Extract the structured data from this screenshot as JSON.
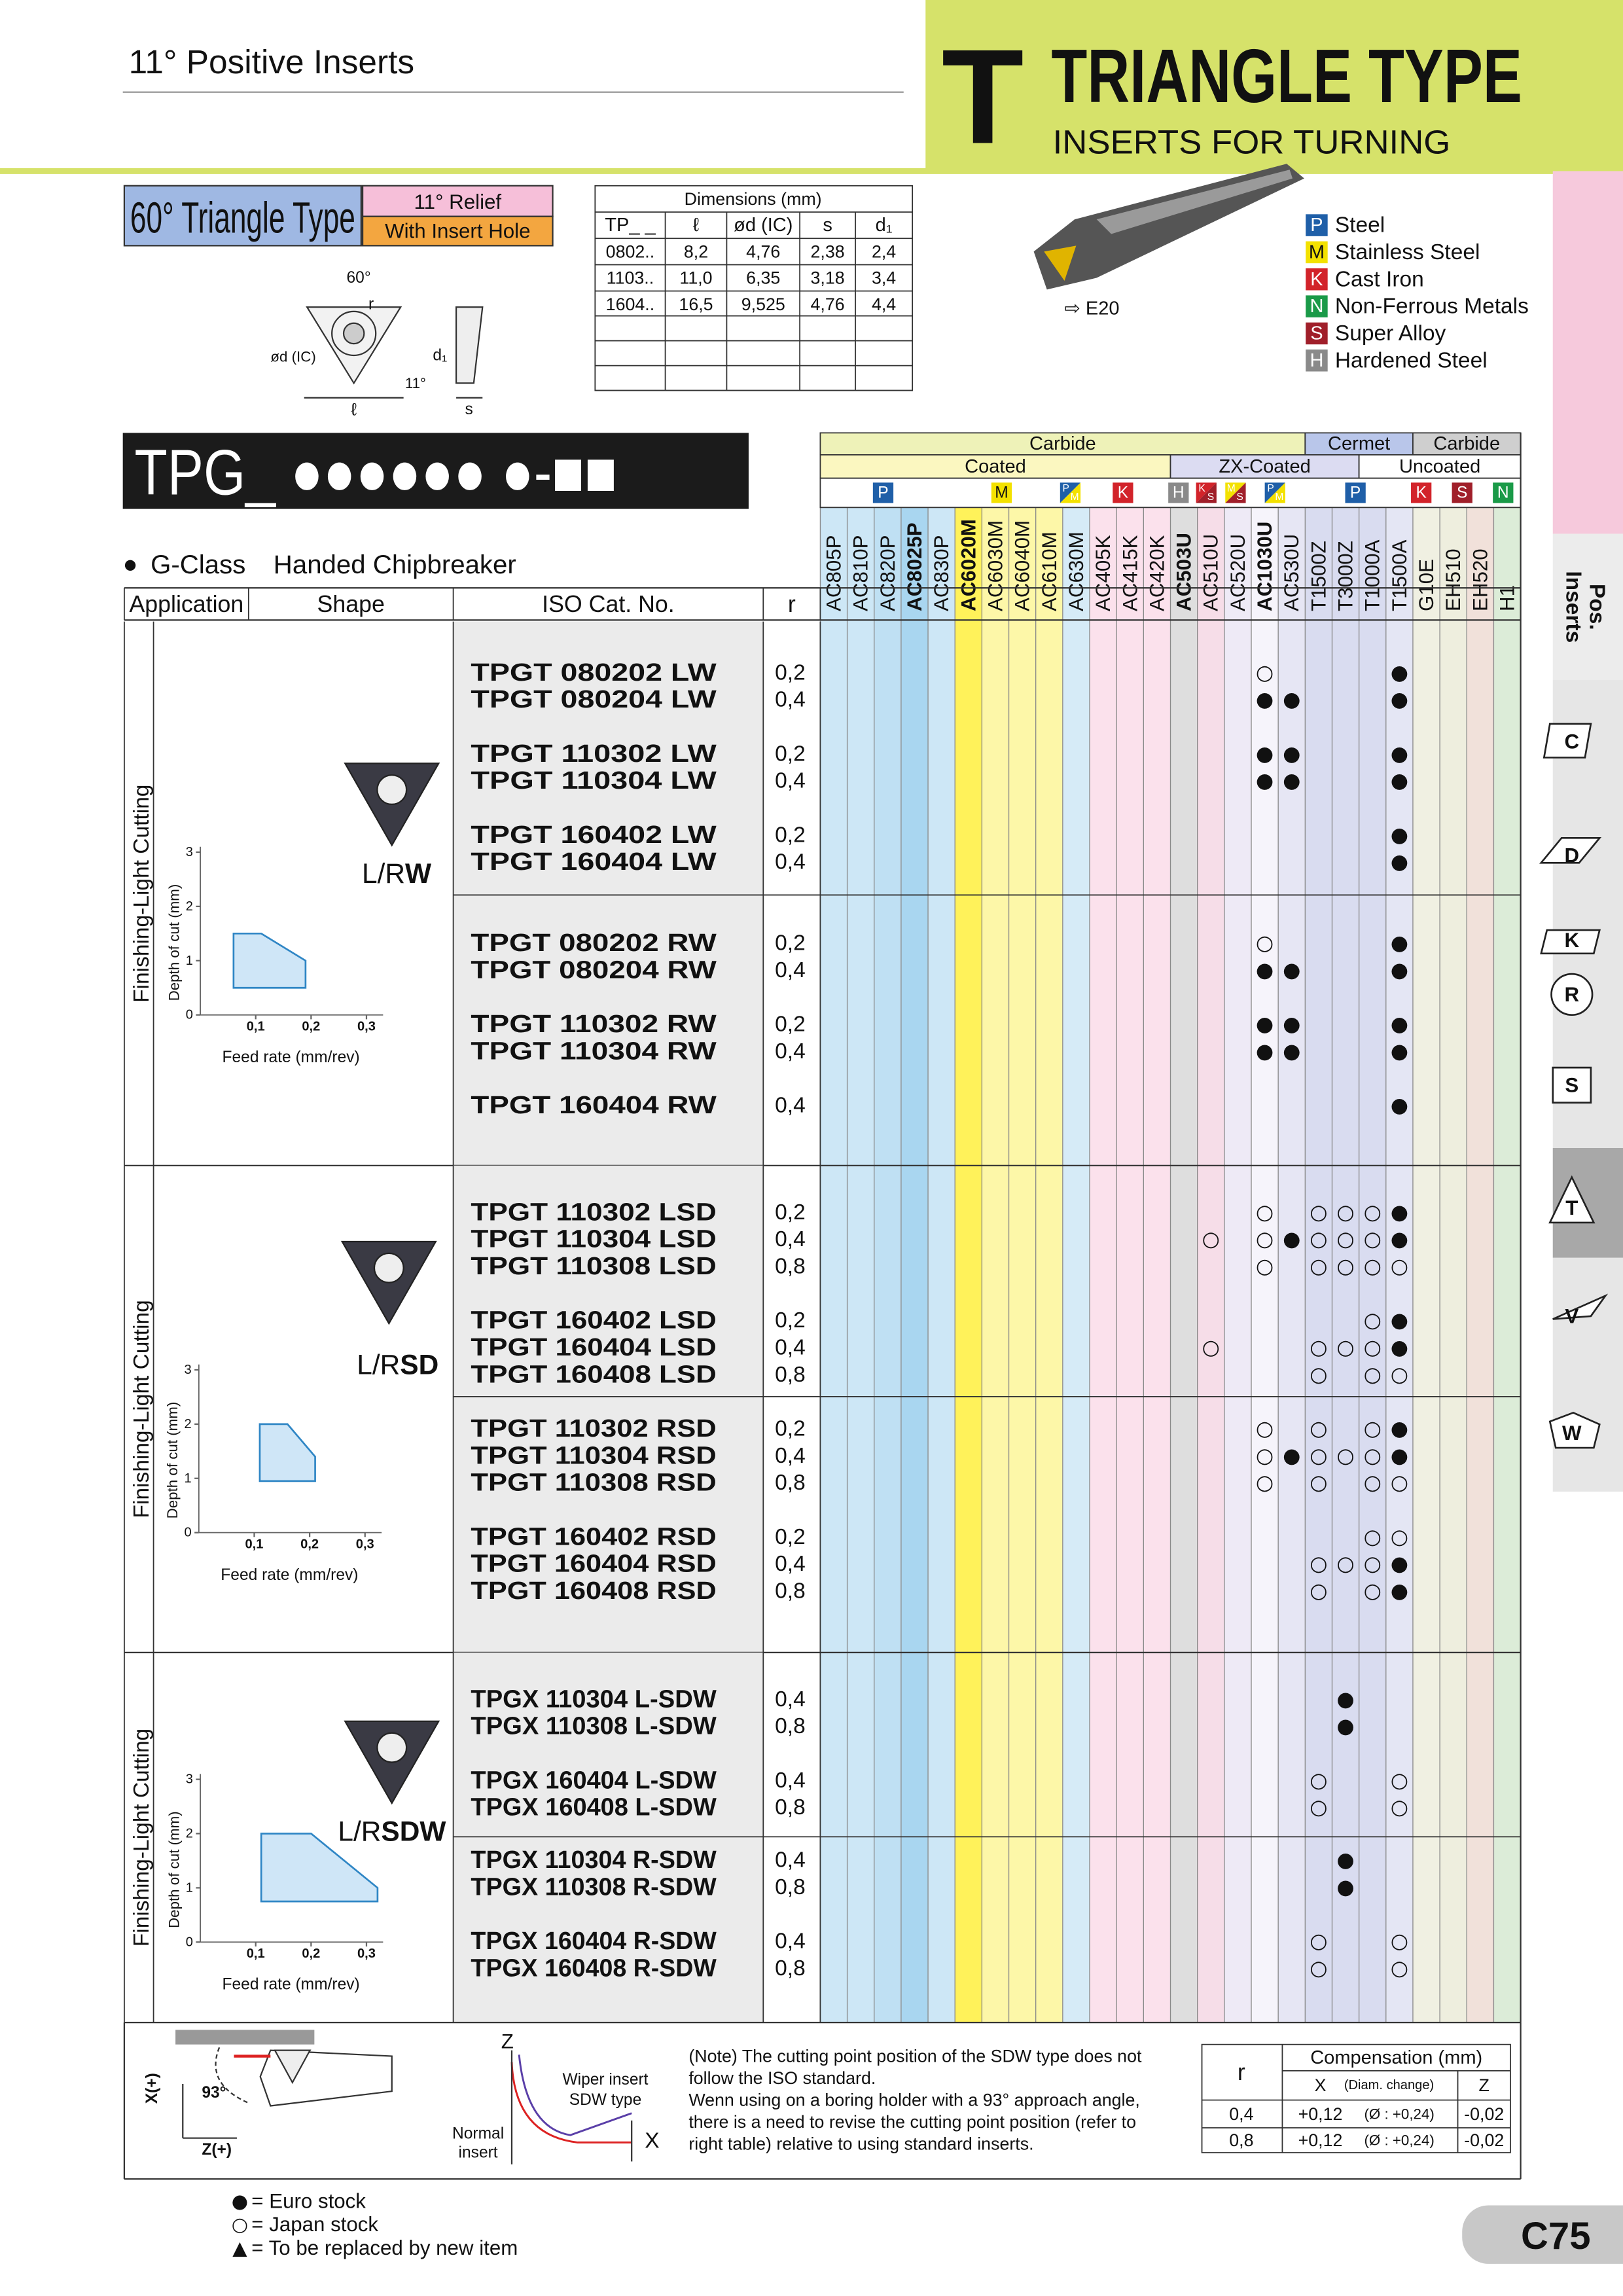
{
  "header": {
    "section": "11° Positive Inserts",
    "letter": "T",
    "title": "TRIANGLE TYPE",
    "subtitle": "INSERTS FOR TURNING"
  },
  "type_box": {
    "name": "60° Triangle Type",
    "relief": "11° Relief",
    "hole": "With Insert Hole"
  },
  "insert_drawing": {
    "angle": "60°",
    "radius": "r",
    "ic": "ød (IC)",
    "length": "ℓ",
    "hole": "d₁",
    "relief": "11°",
    "thickness": "s"
  },
  "dimensions": {
    "title": "Dimensions (mm)",
    "headers": [
      "TP_ _",
      "ℓ",
      "ød (IC)",
      "s",
      "d₁"
    ],
    "rows": [
      [
        "0802..",
        "8,2",
        "4,76",
        "2,38",
        "2,4"
      ],
      [
        "1103..",
        "11,0",
        "6,35",
        "3,18",
        "3,4"
      ],
      [
        "1604..",
        "16,5",
        "9,525",
        "4,76",
        "4,4"
      ]
    ]
  },
  "holder": "⇨ E20",
  "materials": [
    {
      "code": "P",
      "name": "Steel",
      "color": "#1f5fa8"
    },
    {
      "code": "M",
      "name": "Stainless Steel",
      "color": "#f3e100"
    },
    {
      "code": "K",
      "name": "Cast Iron",
      "color": "#d2232a"
    },
    {
      "code": "N",
      "name": "Non-Ferrous Metals",
      "color": "#1a9a48"
    },
    {
      "code": "S",
      "name": "Super Alloy",
      "color": "#a01f2a"
    },
    {
      "code": "H",
      "name": "Hardened Steel",
      "color": "#8a8a8a"
    }
  ],
  "code": "TPG_ ●●●●●● ●-■■",
  "chipbreaker": {
    "bullet": "●",
    "class": "G-Class",
    "name": "Handed Chipbreaker"
  },
  "table": {
    "headers": [
      "Application",
      "Shape",
      "ISO Cat. No.",
      "r"
    ],
    "grade_groups": [
      {
        "name": "Carbide",
        "color": "#eef2b8"
      },
      {
        "name": "Cermet",
        "color": "#b9c6ea"
      },
      {
        "name": "Carbide",
        "color": "#cfcfcf"
      }
    ],
    "coating_groups": [
      {
        "name": "Coated",
        "color": "#fbf7c0"
      },
      {
        "name": "ZX-Coated",
        "color": "#dcdcf2"
      },
      {
        "name": "Uncoated",
        "color": "#ffffff"
      }
    ],
    "material_icons": [
      [
        "P"
      ],
      [
        "M"
      ],
      [
        "P",
        "M"
      ],
      [
        "K"
      ],
      [
        "H"
      ],
      [
        "K",
        "S"
      ],
      [
        "M",
        "S"
      ],
      [
        "P",
        "M"
      ],
      [
        "P"
      ],
      [
        "K"
      ],
      [
        "S"
      ],
      [
        "N"
      ]
    ],
    "grades": [
      {
        "name": "AC805P",
        "color": "#cde7f6",
        "bold": false
      },
      {
        "name": "AC810P",
        "color": "#cde7f6",
        "bold": false
      },
      {
        "name": "AC820P",
        "color": "#bfe0f3",
        "bold": false
      },
      {
        "name": "AC8025P",
        "color": "#a9d6f0",
        "bold": true
      },
      {
        "name": "AC830P",
        "color": "#cde7f6",
        "bold": false
      },
      {
        "name": "AC6020M",
        "color": "#fff25a",
        "bold": true
      },
      {
        "name": "AC6030M",
        "color": "#fdf7a8",
        "bold": false
      },
      {
        "name": "AC6040M",
        "color": "#fdf7a8",
        "bold": false
      },
      {
        "name": "AC610M",
        "color": "#fdf7a8",
        "bold": false
      },
      {
        "name": "AC630M",
        "color": "#d6ebf7",
        "bold": false
      },
      {
        "name": "AC405K",
        "color": "#fbe1ec",
        "bold": false
      },
      {
        "name": "AC415K",
        "color": "#fbe1ec",
        "bold": false
      },
      {
        "name": "AC420K",
        "color": "#fbe1ec",
        "bold": false
      },
      {
        "name": "AC503U",
        "color": "#dedede",
        "bold": true
      },
      {
        "name": "AC510U",
        "color": "#f6dde8",
        "bold": false
      },
      {
        "name": "AC520U",
        "color": "#eeeaf6",
        "bold": false
      },
      {
        "name": "AC1030U",
        "color": "#f6f4fb",
        "bold": true
      },
      {
        "name": "AC530U",
        "color": "#e6e6f4",
        "bold": false
      },
      {
        "name": "T1500Z",
        "color": "#d9dcf0",
        "bold": false
      },
      {
        "name": "T3000Z",
        "color": "#d9dcf0",
        "bold": false
      },
      {
        "name": "T1000A",
        "color": "#d9dcf0",
        "bold": false
      },
      {
        "name": "T1500A",
        "color": "#e4e6f4",
        "bold": false
      },
      {
        "name": "G10E",
        "color": "#f0f0e2",
        "bold": false
      },
      {
        "name": "EH510",
        "color": "#eeeede",
        "bold": false
      },
      {
        "name": "EH520",
        "color": "#f1e1da",
        "bold": false
      },
      {
        "name": "H1",
        "color": "#dcecd8",
        "bold": false
      }
    ],
    "sections": [
      {
        "application": "Finishing-Light Cutting",
        "shape_prefix": "L/R",
        "shape_suffix": "W",
        "chart": {
          "x_label": "Feed rate (mm/rev)",
          "y_label": "Depth of cut (mm)",
          "xlim": [
            0,
            0.33
          ],
          "ylim": [
            0,
            3.1
          ],
          "xticks": [
            {
              "value": 0.1,
              "label": "0,1"
            },
            {
              "value": 0.2,
              "label": "0,2"
            },
            {
              "value": 0.3,
              "label": "0,3"
            }
          ],
          "yticks": [
            0,
            1,
            2,
            3
          ],
          "region": [
            [
              0.06,
              1.5
            ],
            [
              0.11,
              1.5
            ],
            [
              0.19,
              1.0
            ],
            [
              0.19,
              0.5
            ],
            [
              0.06,
              0.5
            ]
          ]
        },
        "parts": [
          {
            "groups": [
              [
                {
                  "cat": "TPGT 080202 LW",
                  "r": "0,2",
                  "stock": {
                    "AC1030U": "○",
                    "T1500A": "●"
                  }
                },
                {
                  "cat": "TPGT 080204 LW",
                  "r": "0,4",
                  "stock": {
                    "AC1030U": "●",
                    "AC530U": "●",
                    "T1500A": "●"
                  }
                }
              ],
              [
                {
                  "cat": "TPGT 110302 LW",
                  "r": "0,2",
                  "stock": {
                    "AC1030U": "●",
                    "AC530U": "●",
                    "T1500A": "●"
                  }
                },
                {
                  "cat": "TPGT 110304 LW",
                  "r": "0,4",
                  "stock": {
                    "AC1030U": "●",
                    "AC530U": "●",
                    "T1500A": "●"
                  }
                }
              ],
              [
                {
                  "cat": "TPGT 160402 LW",
                  "r": "0,2",
                  "stock": {
                    "T1500A": "●"
                  }
                },
                {
                  "cat": "TPGT 160404 LW",
                  "r": "0,4",
                  "stock": {
                    "T1500A": "●"
                  }
                }
              ]
            ]
          },
          {
            "groups": [
              [
                {
                  "cat": "TPGT 080202 RW",
                  "r": "0,2",
                  "stock": {
                    "AC1030U": "○",
                    "T1500A": "●"
                  }
                },
                {
                  "cat": "TPGT 080204 RW",
                  "r": "0,4",
                  "stock": {
                    "AC1030U": "●",
                    "AC530U": "●",
                    "T1500A": "●"
                  }
                }
              ],
              [
                {
                  "cat": "TPGT 110302 RW",
                  "r": "0,2",
                  "stock": {
                    "AC1030U": "●",
                    "AC530U": "●",
                    "T1500A": "●"
                  }
                },
                {
                  "cat": "TPGT 110304 RW",
                  "r": "0,4",
                  "stock": {
                    "AC1030U": "●",
                    "AC530U": "●",
                    "T1500A": "●"
                  }
                }
              ],
              [
                {
                  "cat": "TPGT 160404 RW",
                  "r": "0,4",
                  "stock": {
                    "T1500A": "●"
                  }
                }
              ]
            ]
          }
        ]
      },
      {
        "application": "Finishing-Light Cutting",
        "shape_prefix": "L/R",
        "shape_suffix": "SD",
        "chart": {
          "x_label": "Feed rate (mm/rev)",
          "y_label": "Depth of cut (mm)",
          "xlim": [
            0,
            0.33
          ],
          "ylim": [
            0,
            3.1
          ],
          "xticks": [
            {
              "value": 0.1,
              "label": "0,1"
            },
            {
              "value": 0.2,
              "label": "0,2"
            },
            {
              "value": 0.3,
              "label": "0,3"
            }
          ],
          "yticks": [
            0,
            1,
            2,
            3
          ],
          "region": [
            [
              0.11,
              2.0
            ],
            [
              0.16,
              2.0
            ],
            [
              0.21,
              1.4
            ],
            [
              0.21,
              0.95
            ],
            [
              0.11,
              0.95
            ]
          ]
        },
        "parts": [
          {
            "groups": [
              [
                {
                  "cat": "TPGT 110302 LSD",
                  "r": "0,2",
                  "stock": {
                    "AC1030U": "○",
                    "T1500Z": "○",
                    "T3000Z": "○",
                    "T1000A": "○",
                    "T1500A": "●"
                  }
                },
                {
                  "cat": "TPGT 110304 LSD",
                  "r": "0,4",
                  "stock": {
                    "AC510U": "○",
                    "AC1030U": "○",
                    "AC530U": "●",
                    "T1500Z": "○",
                    "T3000Z": "○",
                    "T1000A": "○",
                    "T1500A": "●"
                  }
                },
                {
                  "cat": "TPGT 110308 LSD",
                  "r": "0,8",
                  "stock": {
                    "AC1030U": "○",
                    "T1500Z": "○",
                    "T3000Z": "○",
                    "T1000A": "○",
                    "T1500A": "○"
                  }
                }
              ],
              [
                {
                  "cat": "TPGT 160402 LSD",
                  "r": "0,2",
                  "stock": {
                    "T1000A": "○",
                    "T1500A": "●"
                  }
                },
                {
                  "cat": "TPGT 160404 LSD",
                  "r": "0,4",
                  "stock": {
                    "AC510U": "○",
                    "T1500Z": "○",
                    "T3000Z": "○",
                    "T1000A": "○",
                    "T1500A": "●"
                  }
                },
                {
                  "cat": "TPGT 160408 LSD",
                  "r": "0,8",
                  "stock": {
                    "T1500Z": "○",
                    "T1000A": "○",
                    "T1500A": "○"
                  }
                }
              ]
            ]
          },
          {
            "groups": [
              [
                {
                  "cat": "TPGT 110302 RSD",
                  "r": "0,2",
                  "stock": {
                    "AC1030U": "○",
                    "T1500Z": "○",
                    "T1000A": "○",
                    "T1500A": "●"
                  }
                },
                {
                  "cat": "TPGT 110304 RSD",
                  "r": "0,4",
                  "stock": {
                    "AC1030U": "○",
                    "AC530U": "●",
                    "T1500Z": "○",
                    "T3000Z": "○",
                    "T1000A": "○",
                    "T1500A": "●"
                  }
                },
                {
                  "cat": "TPGT 110308 RSD",
                  "r": "0,8",
                  "stock": {
                    "AC1030U": "○",
                    "T1500Z": "○",
                    "T1000A": "○",
                    "T1500A": "○"
                  }
                }
              ],
              [
                {
                  "cat": "TPGT 160402 RSD",
                  "r": "0,2",
                  "stock": {
                    "T1000A": "○",
                    "T1500A": "○"
                  }
                },
                {
                  "cat": "TPGT 160404 RSD",
                  "r": "0,4",
                  "stock": {
                    "T1500Z": "○",
                    "T3000Z": "○",
                    "T1000A": "○",
                    "T1500A": "●"
                  }
                },
                {
                  "cat": "TPGT 160408 RSD",
                  "r": "0,8",
                  "stock": {
                    "T1500Z": "○",
                    "T1000A": "○",
                    "T1500A": "●"
                  }
                }
              ]
            ]
          }
        ]
      },
      {
        "application": "Finishing-Light Cutting",
        "shape_prefix": "L/R",
        "shape_suffix": "SDW",
        "chart": {
          "x_label": "Feed rate (mm/rev)",
          "y_label": "Depth of cut (mm)",
          "xlim": [
            0,
            0.33
          ],
          "ylim": [
            0,
            3.1
          ],
          "xticks": [
            {
              "value": 0.1,
              "label": "0,1"
            },
            {
              "value": 0.2,
              "label": "0,2"
            },
            {
              "value": 0.3,
              "label": "0,3"
            }
          ],
          "yticks": [
            0,
            1,
            2,
            3
          ],
          "region": [
            [
              0.11,
              2.0
            ],
            [
              0.2,
              2.0
            ],
            [
              0.32,
              1.0
            ],
            [
              0.32,
              0.75
            ],
            [
              0.11,
              0.75
            ]
          ]
        },
        "parts": [
          {
            "groups": [
              [
                {
                  "cat": "TPGX 110304 L-SDW",
                  "r": "0,4",
                  "stock": {
                    "T3000Z": "●"
                  }
                },
                {
                  "cat": "TPGX 110308 L-SDW",
                  "r": "0,8",
                  "stock": {
                    "T3000Z": "●"
                  }
                }
              ],
              [
                {
                  "cat": "TPGX 160404 L-SDW",
                  "r": "0,4",
                  "stock": {
                    "T1500Z": "○",
                    "T1500A": "○"
                  }
                },
                {
                  "cat": "TPGX 160408 L-SDW",
                  "r": "0,8",
                  "stock": {
                    "T1500Z": "○",
                    "T1500A": "○"
                  }
                }
              ]
            ]
          },
          {
            "groups": [
              [
                {
                  "cat": "TPGX 110304 R-SDW",
                  "r": "0,4",
                  "stock": {
                    "T3000Z": "●"
                  }
                },
                {
                  "cat": "TPGX 110308 R-SDW",
                  "r": "0,8",
                  "stock": {
                    "T3000Z": "●"
                  }
                }
              ],
              [
                {
                  "cat": "TPGX 160404 R-SDW",
                  "r": "0,4",
                  "stock": {
                    "T1500Z": "○",
                    "T1500A": "○"
                  }
                },
                {
                  "cat": "TPGX 160408 R-SDW",
                  "r": "0,8",
                  "stock": {
                    "T1500Z": "○",
                    "T1500A": "○"
                  }
                }
              ]
            ]
          }
        ]
      }
    ]
  },
  "bottom": {
    "diagram": {
      "x_axis": "X(+)",
      "angle": "93°",
      "z_axis": "Z(+)",
      "z": "Z",
      "wiper": "Wiper insert",
      "wiper_type": "SDW type",
      "normal": "Normal",
      "normal2": "insert",
      "x": "X"
    },
    "note": [
      "(Note)  The cutting point position of the SDW type does not",
      "follow the ISO standard.",
      "Wenn using on a boring holder with a 93° approach angle,",
      "there is a need to revise the cutting point position (refer to",
      "right table) relative to using standard inserts."
    ],
    "compensation": {
      "r": "r",
      "title": "Compensation (mm)",
      "x": "X",
      "x_note": "(Diam. change)",
      "z": "Z",
      "rows": [
        [
          "0,4",
          "+0,12",
          "(Ø : +0,24)",
          "-0,02"
        ],
        [
          "0,8",
          "+0,12",
          "(Ø : +0,24)",
          "-0,02"
        ]
      ]
    }
  },
  "legend": [
    {
      "symbol": "●",
      "text": "= Euro stock"
    },
    {
      "symbol": "○",
      "text": "= Japan stock"
    },
    {
      "symbol": "▲",
      "text": "= To be replaced by new item"
    }
  ],
  "page": "C75",
  "tabs": {
    "current": [
      "Pos.",
      "Inserts"
    ],
    "letters": [
      "C",
      "D",
      "K",
      "R",
      "S",
      "T",
      "V",
      "W"
    ]
  }
}
